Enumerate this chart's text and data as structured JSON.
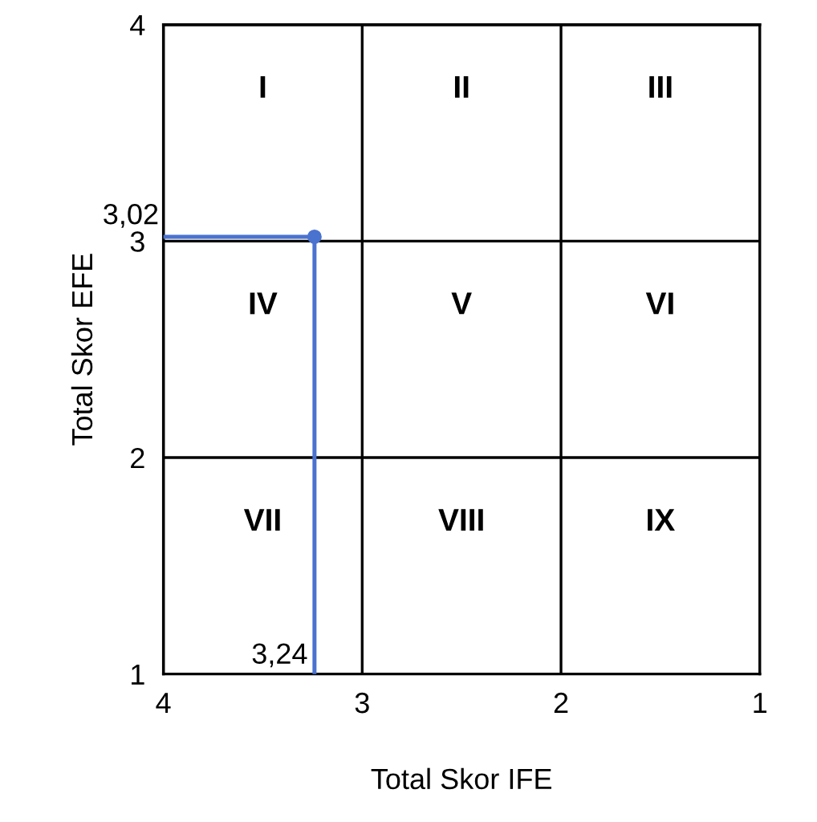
{
  "chart_data": {
    "type": "scatter",
    "xlabel": "Total Skor IFE",
    "ylabel": "Total Skor EFE",
    "xlim": [
      4,
      1
    ],
    "ylim": [
      1,
      4
    ],
    "xticks": [
      4,
      3,
      2,
      1
    ],
    "yticks": [
      1,
      2,
      3,
      4
    ],
    "grid": true,
    "marker": "circle",
    "series": [
      {
        "color": "#4a72cf",
        "x": [
          3.24
        ],
        "values": [
          3.02
        ]
      }
    ],
    "annotations": [
      "I",
      "II",
      "III",
      "IV",
      "V",
      "VI",
      "VII",
      "VIII",
      "IX",
      "3,02",
      "3,24"
    ]
  }
}
